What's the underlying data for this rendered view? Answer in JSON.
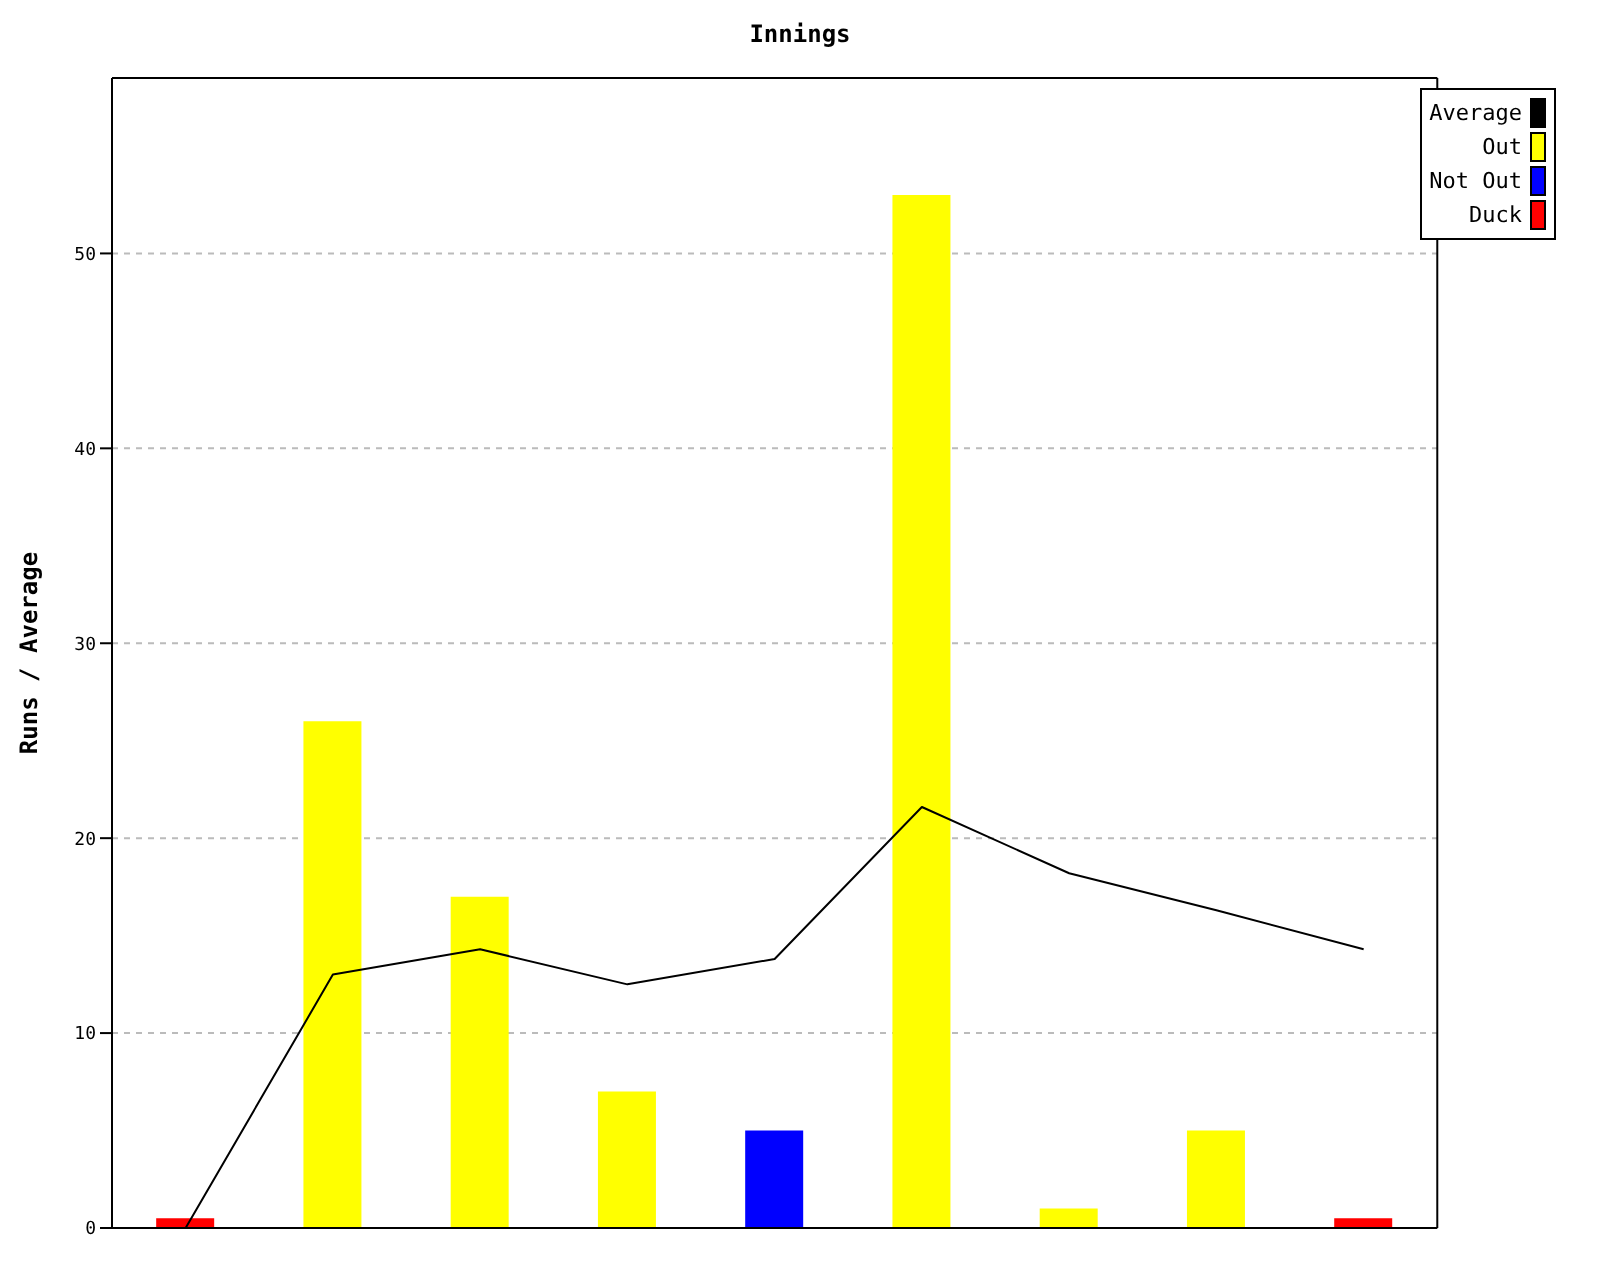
{
  "chart_data": {
    "type": "bar",
    "title": "Innings",
    "ylabel": "Runs / Average",
    "categories": [
      null,
      null,
      null,
      null,
      null,
      null,
      null,
      null,
      null
    ],
    "stacked": true,
    "series": [
      {
        "name": "Average",
        "type": "line",
        "color": "#000000",
        "values": [
          0,
          13,
          14.3,
          12.5,
          13.8,
          21.6,
          18.2,
          16.3,
          14.3
        ]
      },
      {
        "name": "Out",
        "color": "#ffff00",
        "values": [
          null,
          26,
          17,
          7,
          null,
          53,
          1,
          5,
          null
        ]
      },
      {
        "name": "Not Out",
        "color": "#0000ff",
        "values": [
          null,
          null,
          null,
          null,
          5,
          null,
          null,
          null,
          null
        ]
      },
      {
        "name": "Duck",
        "color": "#ff0000",
        "values": [
          0.5,
          null,
          null,
          null,
          null,
          null,
          null,
          null,
          0.5
        ]
      }
    ],
    "ylim": [
      0,
      59
    ],
    "yticks": [
      0,
      10,
      20,
      30,
      40,
      50
    ],
    "grid": "y",
    "legend": "top right",
    "marker": "none",
    "line_style": "solid"
  }
}
